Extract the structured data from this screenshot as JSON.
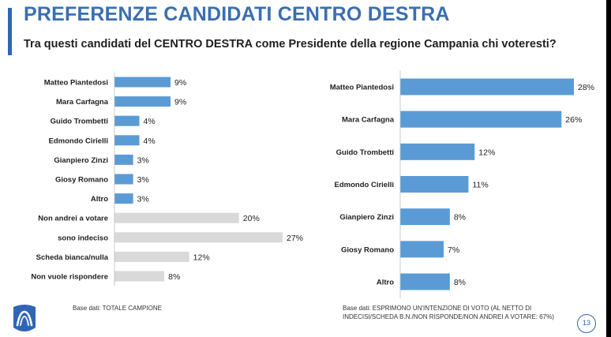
{
  "title": "PREFERENZE CANDIDATI CENTRO DESTRA",
  "subtitle": "Tra questi candidati del CENTRO DESTRA come Presidente della regione Campania chi voteresti?",
  "colors": {
    "title": "#3a6fb0",
    "bar_blue": "#5b9bd5",
    "bar_grey": "#d9d9d9",
    "accent": "#2f65b5"
  },
  "chart_data": [
    {
      "type": "bar",
      "orientation": "horizontal",
      "categories": [
        "Matteo Piantedosi",
        "Mara Carfagna",
        "Guido Trombetti",
        "Edmondo Cirielli",
        "Gianpiero Zinzi",
        "Giosy Romano",
        "Altro",
        "Non andrei a votare",
        "sono indeciso",
        "Scheda bianca/nulla",
        "Non vuole rispondere"
      ],
      "values": [
        9,
        9,
        4,
        4,
        3,
        3,
        3,
        20,
        27,
        12,
        8
      ],
      "labels": [
        "9%",
        "9%",
        "4%",
        "4%",
        "3%",
        "3%",
        "3%",
        "20%",
        "27%",
        "12%",
        "8%"
      ],
      "bar_colors": [
        "#5b9bd5",
        "#5b9bd5",
        "#5b9bd5",
        "#5b9bd5",
        "#5b9bd5",
        "#5b9bd5",
        "#5b9bd5",
        "#d9d9d9",
        "#d9d9d9",
        "#d9d9d9",
        "#d9d9d9"
      ],
      "xlim": [
        0,
        27
      ],
      "note": "Base dati: TOTALE CAMPIONE"
    },
    {
      "type": "bar",
      "orientation": "horizontal",
      "categories": [
        "Matteo Piantedosi",
        "Mara Carfagna",
        "Guido Trombetti",
        "Edmondo Cirielli",
        "Gianpiero Zinzi",
        "Giosy Romano",
        "Altro"
      ],
      "values": [
        28,
        26,
        12,
        11,
        8,
        7,
        8
      ],
      "labels": [
        "28%",
        "26%",
        "12%",
        "11%",
        "8%",
        "7%",
        "8%"
      ],
      "bar_colors": [
        "#5b9bd5",
        "#5b9bd5",
        "#5b9bd5",
        "#5b9bd5",
        "#5b9bd5",
        "#5b9bd5",
        "#5b9bd5"
      ],
      "xlim": [
        0,
        28
      ],
      "note": "Base dati: ESPRIMONO UN'INTENZIONE DI VOTO (AL NETTO DI INDECISI/SCHEDA B.N./NON RISPONDE/NON ANDREI A VOTARE: 67%)"
    }
  ],
  "page_number": "13"
}
